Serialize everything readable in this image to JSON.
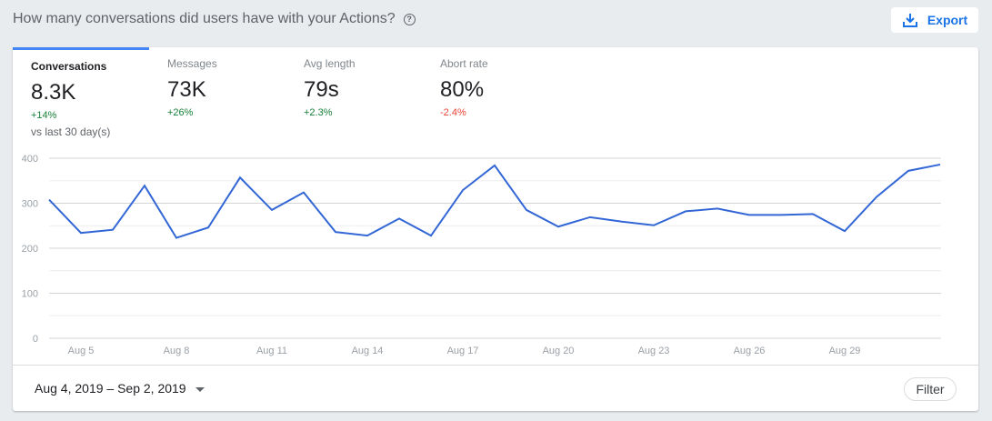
{
  "header": {
    "title": "How many conversations did users have with your Actions?",
    "help_icon": "help-circle-icon",
    "export_label": "Export",
    "export_icon": "download-icon"
  },
  "tabs": [
    {
      "label": "Conversations",
      "value": "8.3K",
      "change": "+14%",
      "change_color": "#188038",
      "comparison": "vs last 30 day(s)",
      "active": true
    },
    {
      "label": "Messages",
      "value": "73K",
      "change": "+26%",
      "change_color": "#188038"
    },
    {
      "label": "Avg length",
      "value": "79s",
      "change": "+2.3%",
      "change_color": "#188038"
    },
    {
      "label": "Abort rate",
      "value": "80%",
      "change": "-2.4%",
      "change_color": "#ea4335"
    }
  ],
  "footer": {
    "date_range": "Aug 4, 2019 – Sep 2, 2019",
    "filter_label": "Filter"
  },
  "chart_data": {
    "type": "line",
    "x": [
      "Aug 4",
      "Aug 5",
      "Aug 6",
      "Aug 7",
      "Aug 8",
      "Aug 9",
      "Aug 10",
      "Aug 11",
      "Aug 12",
      "Aug 13",
      "Aug 14",
      "Aug 15",
      "Aug 16",
      "Aug 17",
      "Aug 18",
      "Aug 19",
      "Aug 20",
      "Aug 21",
      "Aug 22",
      "Aug 23",
      "Aug 24",
      "Aug 25",
      "Aug 26",
      "Aug 27",
      "Aug 28",
      "Aug 29",
      "Aug 30",
      "Aug 31",
      "Sep 1"
    ],
    "series": [
      {
        "values": [
          308,
          234,
          241,
          339,
          223,
          246,
          357,
          285,
          324,
          236,
          228,
          266,
          228,
          329,
          384,
          285,
          248,
          269,
          259,
          251,
          282,
          288,
          274,
          274,
          276,
          238,
          314,
          372,
          386
        ],
        "color": "#3367d6"
      }
    ],
    "x_tick_labels": [
      "Aug 5",
      "Aug 8",
      "Aug 11",
      "Aug 14",
      "Aug 17",
      "Aug 20",
      "Aug 23",
      "Aug 26",
      "Aug 29"
    ],
    "y_ticks": [
      0,
      100,
      200,
      300,
      400
    ],
    "ylim": [
      0,
      400
    ],
    "grid": true
  }
}
